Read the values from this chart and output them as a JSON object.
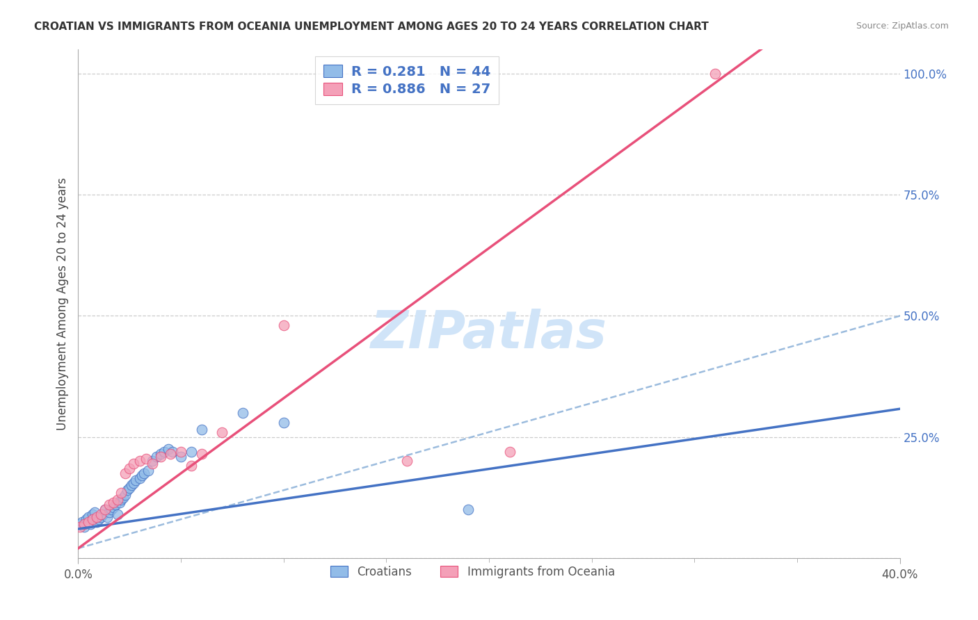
{
  "title": "CROATIAN VS IMMIGRANTS FROM OCEANIA UNEMPLOYMENT AMONG AGES 20 TO 24 YEARS CORRELATION CHART",
  "source": "Source: ZipAtlas.com",
  "ylabel": "Unemployment Among Ages 20 to 24 years",
  "xlim": [
    0.0,
    0.4
  ],
  "ylim": [
    0.0,
    1.05
  ],
  "xtick_positions": [
    0.0,
    0.4
  ],
  "xticklabels": [
    "0.0%",
    "40.0%"
  ],
  "ytick_positions": [
    0.0,
    0.25,
    0.5,
    0.75,
    1.0
  ],
  "yticklabels": [
    "",
    "25.0%",
    "50.0%",
    "75.0%",
    "100.0%"
  ],
  "grid_color": "#cccccc",
  "bg_color": "#ffffff",
  "cr_scatter_color": "#92bce8",
  "oc_scatter_color": "#f4a0b8",
  "cr_line_color": "#4472c4",
  "oc_line_color": "#e8507a",
  "dashed_color": "#8ab0d8",
  "R_cr": 0.281,
  "N_cr": 44,
  "R_oc": 0.886,
  "N_oc": 27,
  "watermark": "ZIPatlas",
  "watermark_color": "#d0e4f8",
  "label_cr": "Croatians",
  "label_oc": "Immigrants from Oceania",
  "cr_x": [
    0.001,
    0.002,
    0.003,
    0.004,
    0.005,
    0.006,
    0.007,
    0.008,
    0.009,
    0.01,
    0.011,
    0.012,
    0.013,
    0.014,
    0.015,
    0.016,
    0.017,
    0.018,
    0.019,
    0.02,
    0.021,
    0.022,
    0.023,
    0.024,
    0.025,
    0.026,
    0.027,
    0.028,
    0.03,
    0.031,
    0.032,
    0.034,
    0.036,
    0.038,
    0.04,
    0.042,
    0.044,
    0.046,
    0.05,
    0.055,
    0.06,
    0.08,
    0.1,
    0.19
  ],
  "cr_y": [
    0.07,
    0.075,
    0.065,
    0.08,
    0.085,
    0.07,
    0.09,
    0.095,
    0.075,
    0.08,
    0.085,
    0.09,
    0.1,
    0.085,
    0.095,
    0.1,
    0.105,
    0.11,
    0.09,
    0.115,
    0.12,
    0.125,
    0.13,
    0.14,
    0.145,
    0.15,
    0.155,
    0.16,
    0.165,
    0.17,
    0.175,
    0.18,
    0.2,
    0.21,
    0.215,
    0.22,
    0.225,
    0.22,
    0.21,
    0.22,
    0.265,
    0.3,
    0.28,
    0.1
  ],
  "oc_x": [
    0.001,
    0.003,
    0.005,
    0.007,
    0.009,
    0.011,
    0.013,
    0.015,
    0.017,
    0.019,
    0.021,
    0.023,
    0.025,
    0.027,
    0.03,
    0.033,
    0.036,
    0.04,
    0.045,
    0.05,
    0.055,
    0.06,
    0.07,
    0.1,
    0.16,
    0.21,
    0.31
  ],
  "oc_y": [
    0.065,
    0.07,
    0.075,
    0.08,
    0.085,
    0.09,
    0.1,
    0.11,
    0.115,
    0.12,
    0.135,
    0.175,
    0.185,
    0.195,
    0.2,
    0.205,
    0.195,
    0.21,
    0.215,
    0.22,
    0.19,
    0.215,
    0.26,
    0.48,
    0.2,
    0.22,
    1.0
  ],
  "cr_line_slope": 0.62,
  "cr_line_intercept": 0.06,
  "oc_line_slope": 3.1,
  "oc_line_intercept": 0.02,
  "dashed_slope": 1.2,
  "dashed_intercept": 0.02
}
